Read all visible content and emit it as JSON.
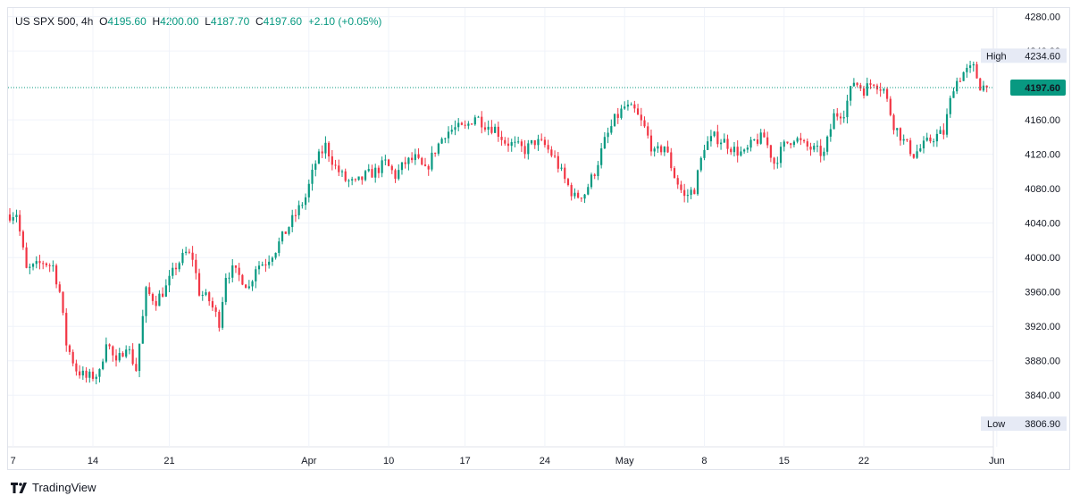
{
  "header": {
    "symbol": "US SPX 500, 4h",
    "open_label": "O",
    "open": "4195.60",
    "high_label": "H",
    "high": "4200.00",
    "low_label": "L",
    "low": "4187.70",
    "close_label": "C",
    "close": "4197.60",
    "change": "+2.10 (+0.05%)"
  },
  "brand": {
    "name": "TradingView"
  },
  "colors": {
    "up": "#089981",
    "down": "#f23645",
    "grid": "#f0f3fa",
    "price_line": "#089981"
  },
  "chart_data": {
    "type": "candlestick",
    "title": "US SPX 500, 4h",
    "ylim": [
      3780,
      4290
    ],
    "y_ticks": [
      "4280.00",
      "4240.00",
      "4160.00",
      "4120.00",
      "4080.00",
      "4040.00",
      "4000.00",
      "3960.00",
      "3920.00",
      "3880.00",
      "3840.00"
    ],
    "x_ticks": [
      {
        "label": "7",
        "bar": 1
      },
      {
        "label": "14",
        "bar": 25
      },
      {
        "label": "21",
        "bar": 48
      },
      {
        "label": "Apr",
        "bar": 90
      },
      {
        "label": "10",
        "bar": 114
      },
      {
        "label": "17",
        "bar": 137
      },
      {
        "label": "24",
        "bar": 161
      },
      {
        "label": "May",
        "bar": 185
      },
      {
        "label": "8",
        "bar": 209
      },
      {
        "label": "15",
        "bar": 233
      },
      {
        "label": "22",
        "bar": 257
      },
      {
        "label": "Jun",
        "bar": 297
      }
    ],
    "last_price": {
      "label": "4197.60",
      "value": 4197.6
    },
    "high_marker": {
      "label": "High",
      "value": "4234.60",
      "y": 4234.6
    },
    "low_marker": {
      "label": "Low",
      "value": "3806.90",
      "y": 3806.9
    },
    "key_closes": [
      {
        "bar": 0,
        "v": 4050
      },
      {
        "bar": 2,
        "v": 4052
      },
      {
        "bar": 5,
        "v": 3985
      },
      {
        "bar": 8,
        "v": 3990
      },
      {
        "bar": 10,
        "v": 3995
      },
      {
        "bar": 13,
        "v": 3990
      },
      {
        "bar": 15,
        "v": 3960
      },
      {
        "bar": 17,
        "v": 3900
      },
      {
        "bar": 20,
        "v": 3870
      },
      {
        "bar": 23,
        "v": 3860
      },
      {
        "bar": 27,
        "v": 3865
      },
      {
        "bar": 29,
        "v": 3905
      },
      {
        "bar": 32,
        "v": 3875
      },
      {
        "bar": 35,
        "v": 3900
      },
      {
        "bar": 38,
        "v": 3870
      },
      {
        "bar": 41,
        "v": 3960
      },
      {
        "bar": 44,
        "v": 3950
      },
      {
        "bar": 47,
        "v": 3965
      },
      {
        "bar": 50,
        "v": 3990
      },
      {
        "bar": 53,
        "v": 4005
      },
      {
        "bar": 55,
        "v": 4000
      },
      {
        "bar": 57,
        "v": 3960
      },
      {
        "bar": 60,
        "v": 3950
      },
      {
        "bar": 63,
        "v": 3925
      },
      {
        "bar": 65,
        "v": 3980
      },
      {
        "bar": 67,
        "v": 3985
      },
      {
        "bar": 70,
        "v": 3975
      },
      {
        "bar": 72,
        "v": 3965
      },
      {
        "bar": 74,
        "v": 3990
      },
      {
        "bar": 77,
        "v": 3995
      },
      {
        "bar": 80,
        "v": 4010
      },
      {
        "bar": 83,
        "v": 4030
      },
      {
        "bar": 86,
        "v": 4050
      },
      {
        "bar": 89,
        "v": 4070
      },
      {
        "bar": 92,
        "v": 4110
      },
      {
        "bar": 95,
        "v": 4130
      },
      {
        "bar": 98,
        "v": 4105
      },
      {
        "bar": 101,
        "v": 4090
      },
      {
        "bar": 104,
        "v": 4085
      },
      {
        "bar": 107,
        "v": 4095
      },
      {
        "bar": 110,
        "v": 4100
      },
      {
        "bar": 113,
        "v": 4110
      },
      {
        "bar": 116,
        "v": 4095
      },
      {
        "bar": 119,
        "v": 4110
      },
      {
        "bar": 122,
        "v": 4115
      },
      {
        "bar": 125,
        "v": 4100
      },
      {
        "bar": 128,
        "v": 4125
      },
      {
        "bar": 131,
        "v": 4145
      },
      {
        "bar": 134,
        "v": 4150
      },
      {
        "bar": 137,
        "v": 4150
      },
      {
        "bar": 140,
        "v": 4165
      },
      {
        "bar": 143,
        "v": 4155
      },
      {
        "bar": 146,
        "v": 4150
      },
      {
        "bar": 149,
        "v": 4135
      },
      {
        "bar": 152,
        "v": 4130
      },
      {
        "bar": 155,
        "v": 4125
      },
      {
        "bar": 158,
        "v": 4135
      },
      {
        "bar": 161,
        "v": 4130
      },
      {
        "bar": 164,
        "v": 4115
      },
      {
        "bar": 167,
        "v": 4090
      },
      {
        "bar": 170,
        "v": 4070
      },
      {
        "bar": 173,
        "v": 4075
      },
      {
        "bar": 176,
        "v": 4100
      },
      {
        "bar": 179,
        "v": 4135
      },
      {
        "bar": 182,
        "v": 4160
      },
      {
        "bar": 185,
        "v": 4175
      },
      {
        "bar": 188,
        "v": 4170
      },
      {
        "bar": 191,
        "v": 4150
      },
      {
        "bar": 194,
        "v": 4120
      },
      {
        "bar": 197,
        "v": 4130
      },
      {
        "bar": 200,
        "v": 4095
      },
      {
        "bar": 203,
        "v": 4070
      },
      {
        "bar": 206,
        "v": 4080
      },
      {
        "bar": 209,
        "v": 4130
      },
      {
        "bar": 212,
        "v": 4140
      },
      {
        "bar": 215,
        "v": 4135
      },
      {
        "bar": 218,
        "v": 4125
      },
      {
        "bar": 221,
        "v": 4120
      },
      {
        "bar": 224,
        "v": 4135
      },
      {
        "bar": 227,
        "v": 4140
      },
      {
        "bar": 230,
        "v": 4110
      },
      {
        "bar": 233,
        "v": 4130
      },
      {
        "bar": 236,
        "v": 4140
      },
      {
        "bar": 239,
        "v": 4130
      },
      {
        "bar": 242,
        "v": 4125
      },
      {
        "bar": 245,
        "v": 4120
      },
      {
        "bar": 248,
        "v": 4165
      },
      {
        "bar": 251,
        "v": 4170
      },
      {
        "bar": 254,
        "v": 4205
      },
      {
        "bar": 257,
        "v": 4195
      },
      {
        "bar": 260,
        "v": 4205
      },
      {
        "bar": 263,
        "v": 4195
      },
      {
        "bar": 266,
        "v": 4155
      },
      {
        "bar": 269,
        "v": 4135
      },
      {
        "bar": 272,
        "v": 4120
      },
      {
        "bar": 275,
        "v": 4130
      },
      {
        "bar": 278,
        "v": 4140
      },
      {
        "bar": 281,
        "v": 4145
      },
      {
        "bar": 284,
        "v": 4200
      },
      {
        "bar": 287,
        "v": 4215
      },
      {
        "bar": 290,
        "v": 4220
      },
      {
        "bar": 292,
        "v": 4200
      },
      {
        "bar": 294,
        "v": 4197.6
      }
    ]
  }
}
